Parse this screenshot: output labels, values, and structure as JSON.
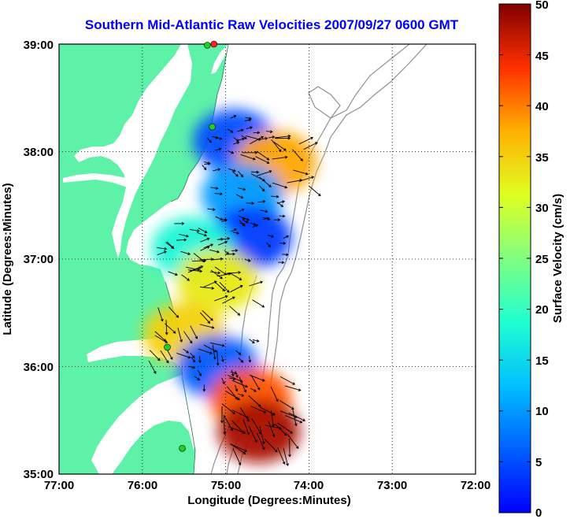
{
  "title": "Southern Mid-Atlantic Raw Velocities 2007/09/27 0600 GMT",
  "map": {
    "xlabel": "Longitude (Degrees:Minutes)",
    "ylabel": "Latitude (Degrees:Minutes)",
    "x_ticks": [
      "77:00",
      "76:00",
      "75:00",
      "74:00",
      "73:00",
      "72:00"
    ],
    "y_ticks": [
      "39:00",
      "38:00",
      "37:00",
      "36:00",
      "35:00"
    ],
    "lon_range": [
      -77,
      -72
    ],
    "lat_range": [
      35,
      39
    ],
    "land_color": "#5ef2a8",
    "grid": "dotted"
  },
  "colorbar": {
    "label": "Surface Velocity (cm/s)",
    "ticks": [
      "50",
      "45",
      "40",
      "35",
      "30",
      "25",
      "20",
      "15",
      "10",
      "5",
      "0"
    ],
    "range": [
      0,
      50
    ],
    "colormap": "jet"
  },
  "chart_data": {
    "type": "heatmap",
    "title": "Southern Mid-Atlantic Raw Velocities 2007/09/27 0600 GMT",
    "xlabel": "Longitude (Degrees:Minutes)",
    "ylabel": "Latitude (Degrees:Minutes)",
    "xlim": [
      -77,
      -72
    ],
    "ylim": [
      35,
      39
    ],
    "colorbar_label": "Surface Velocity (cm/s)",
    "colorbar_range": [
      0,
      50
    ],
    "regions": [
      {
        "lon": -74.9,
        "lat": 38.1,
        "speed": 5
      },
      {
        "lon": -74.4,
        "lat": 37.9,
        "speed": 38
      },
      {
        "lon": -74.8,
        "lat": 37.6,
        "speed": 10
      },
      {
        "lon": -74.7,
        "lat": 37.2,
        "speed": 4
      },
      {
        "lon": -75.4,
        "lat": 37.1,
        "speed": 18
      },
      {
        "lon": -75.1,
        "lat": 36.8,
        "speed": 33
      },
      {
        "lon": -75.5,
        "lat": 36.3,
        "speed": 35
      },
      {
        "lon": -75.1,
        "lat": 36.0,
        "speed": 6
      },
      {
        "lon": -74.7,
        "lat": 35.7,
        "speed": 42
      },
      {
        "lon": -74.6,
        "lat": 35.4,
        "speed": 48
      }
    ]
  },
  "markers": [
    {
      "name": "site-1",
      "lon": -75.14,
      "lat": 39.0,
      "color": "#ff2020"
    },
    {
      "name": "site-2",
      "lon": -75.22,
      "lat": 38.99,
      "color": "#20d020"
    },
    {
      "name": "site-3",
      "lon": -75.16,
      "lat": 38.23,
      "color": "#20d020"
    },
    {
      "name": "site-4",
      "lon": -75.7,
      "lat": 36.18,
      "color": "#20d020"
    },
    {
      "name": "site-5",
      "lon": -75.52,
      "lat": 35.24,
      "color": "#20d020"
    }
  ]
}
